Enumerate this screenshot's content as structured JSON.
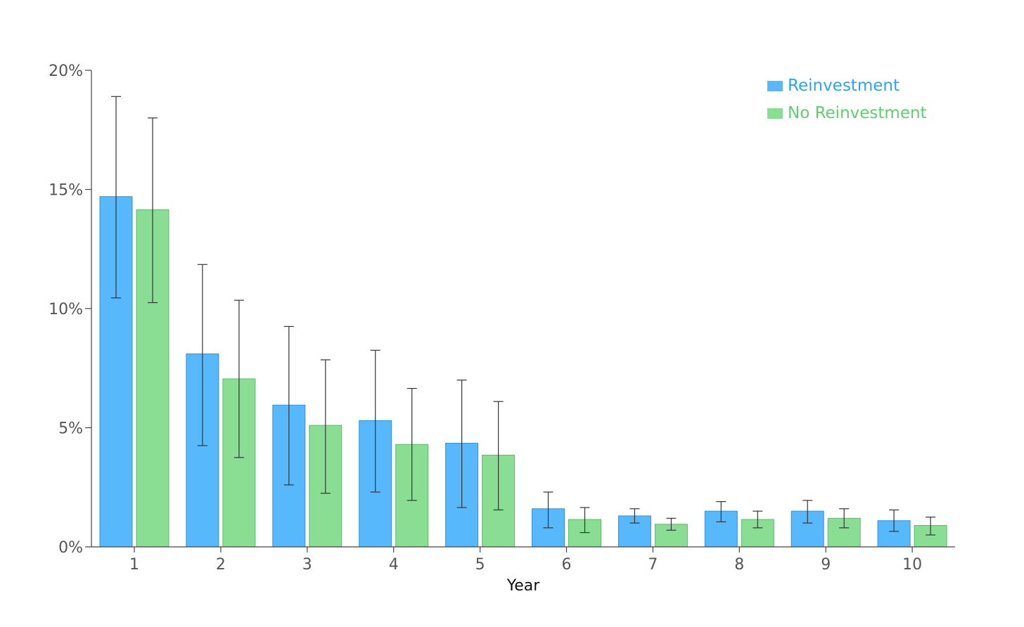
{
  "colors": {
    "series_1_fill": "#57b8fb",
    "series_1_stroke": "#3a8fd0",
    "series_1_legend": "#2aa4f4",
    "series_2_fill": "#8ade94",
    "series_2_stroke": "#5fb86a",
    "series_2_legend": "#5fcf6d",
    "axis": "#444444",
    "error_bar": "#333333"
  },
  "chart_data": {
    "type": "bar",
    "xlabel": "Year",
    "ylabel": "",
    "y_tick_format": "percent",
    "ylim": [
      0,
      20
    ],
    "yticks": [
      0,
      5,
      10,
      15,
      20
    ],
    "y_tick_labels": [
      "0%",
      "5%",
      "10%",
      "15%",
      "20%"
    ],
    "categories": [
      "1",
      "2",
      "3",
      "4",
      "5",
      "6",
      "7",
      "8",
      "9",
      "10"
    ],
    "grid": false,
    "legend_position": "top-right",
    "series": [
      {
        "name": "Reinvestment",
        "values": [
          14.7,
          8.1,
          5.95,
          5.3,
          4.35,
          1.6,
          1.3,
          1.5,
          1.5,
          1.1
        ],
        "error_low": [
          10.45,
          4.25,
          2.6,
          2.3,
          1.65,
          0.8,
          1.0,
          1.05,
          1.0,
          0.65
        ],
        "error_high": [
          18.9,
          11.85,
          9.25,
          8.25,
          7.0,
          2.3,
          1.6,
          1.9,
          1.95,
          1.55
        ]
      },
      {
        "name": "No Reinvestment",
        "values": [
          14.15,
          7.05,
          5.1,
          4.3,
          3.85,
          1.15,
          0.95,
          1.15,
          1.2,
          0.9
        ],
        "error_low": [
          10.25,
          3.75,
          2.25,
          1.95,
          1.55,
          0.6,
          0.7,
          0.8,
          0.8,
          0.5
        ],
        "error_high": [
          18.0,
          10.35,
          7.85,
          6.65,
          6.1,
          1.65,
          1.2,
          1.5,
          1.6,
          1.25
        ]
      }
    ]
  }
}
